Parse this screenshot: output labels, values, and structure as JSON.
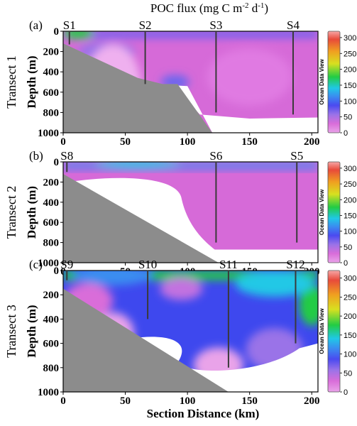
{
  "title": "POC flux (mg C m",
  "title_sup1": "-2",
  "title_mid": " d",
  "title_sup2": "-1",
  "title_end": ")",
  "xlabel": "Section Distance (km)",
  "ylabel": "Depth (m)",
  "watermark": "Ocean Data View",
  "colors": {
    "bathymetry": "#8c8c8c",
    "station_line": "#3a3a3a",
    "scale": [
      "#e9a3e9",
      "#d96dd9",
      "#9a73e8",
      "#4a4af0",
      "#3a8ef0",
      "#20c8e6",
      "#22cc44",
      "#d8e020",
      "#f0a020",
      "#e84a3a",
      "#f7a7a7"
    ]
  },
  "chart_data": [
    {
      "type": "heatmap",
      "panel_label": "(a)",
      "transect": "Transect 1",
      "xlim": [
        0,
        205
      ],
      "ylim": [
        1000,
        0
      ],
      "x_ticks": [
        "0",
        "50",
        "100",
        "150",
        "200"
      ],
      "y_ticks": [
        "0",
        "200",
        "400",
        "600",
        "800",
        "1000"
      ],
      "colorbar_ticks": [
        "0",
        "50",
        "100",
        "150",
        "200",
        "250",
        "300"
      ],
      "colorbar_range": [
        0,
        320
      ],
      "stations": [
        {
          "name": "S1",
          "x": 5,
          "depth": 130
        },
        {
          "name": "S2",
          "x": 66,
          "depth": 520
        },
        {
          "name": "S3",
          "x": 123,
          "depth": 800
        },
        {
          "name": "S4",
          "x": 185,
          "depth": 820
        }
      ],
      "bathymetry": [
        [
          0,
          120
        ],
        [
          60,
          460
        ],
        [
          80,
          520
        ],
        [
          92,
          520
        ],
        [
          120,
          1000
        ]
      ],
      "dominant_range": [
        0,
        30
      ],
      "surface_max": 110
    },
    {
      "type": "heatmap",
      "panel_label": "(b)",
      "transect": "Transect 2",
      "xlim": [
        0,
        205
      ],
      "ylim": [
        1000,
        0
      ],
      "x_ticks": [
        "0",
        "50",
        "100",
        "150",
        "200"
      ],
      "y_ticks": [
        "0",
        "200",
        "400",
        "600",
        "800",
        "1000"
      ],
      "colorbar_ticks": [
        "0",
        "50",
        "100",
        "150",
        "200",
        "250",
        "300"
      ],
      "colorbar_range": [
        0,
        320
      ],
      "stations": [
        {
          "name": "S8",
          "x": 3,
          "depth": 100
        },
        {
          "name": "S6",
          "x": 123,
          "depth": 800
        },
        {
          "name": "S5",
          "x": 188,
          "depth": 800
        }
      ],
      "bathymetry": [
        [
          0,
          120
        ],
        [
          125,
          1000
        ]
      ],
      "dominant_range": [
        0,
        30
      ],
      "surface_max": 55
    },
    {
      "type": "heatmap",
      "panel_label": "(c)",
      "transect": "Transect 3",
      "xlim": [
        0,
        205
      ],
      "ylim": [
        1000,
        0
      ],
      "x_ticks": [
        "0",
        "50",
        "100",
        "150",
        "200"
      ],
      "y_ticks": [
        "0",
        "200",
        "400",
        "600",
        "800",
        "1000"
      ],
      "colorbar_ticks": [
        "0",
        "50",
        "100",
        "150",
        "200",
        "250",
        "300"
      ],
      "colorbar_range": [
        0,
        320
      ],
      "stations": [
        {
          "name": "S9",
          "x": 3,
          "depth": 80
        },
        {
          "name": "S10",
          "x": 68,
          "depth": 400
        },
        {
          "name": "S11",
          "x": 133,
          "depth": 800
        },
        {
          "name": "S12",
          "x": 187,
          "depth": 600
        }
      ],
      "bathymetry": [
        [
          0,
          150
        ],
        [
          133,
          1000
        ]
      ],
      "dominant_range": [
        20,
        90
      ],
      "surface_max": 110
    }
  ]
}
